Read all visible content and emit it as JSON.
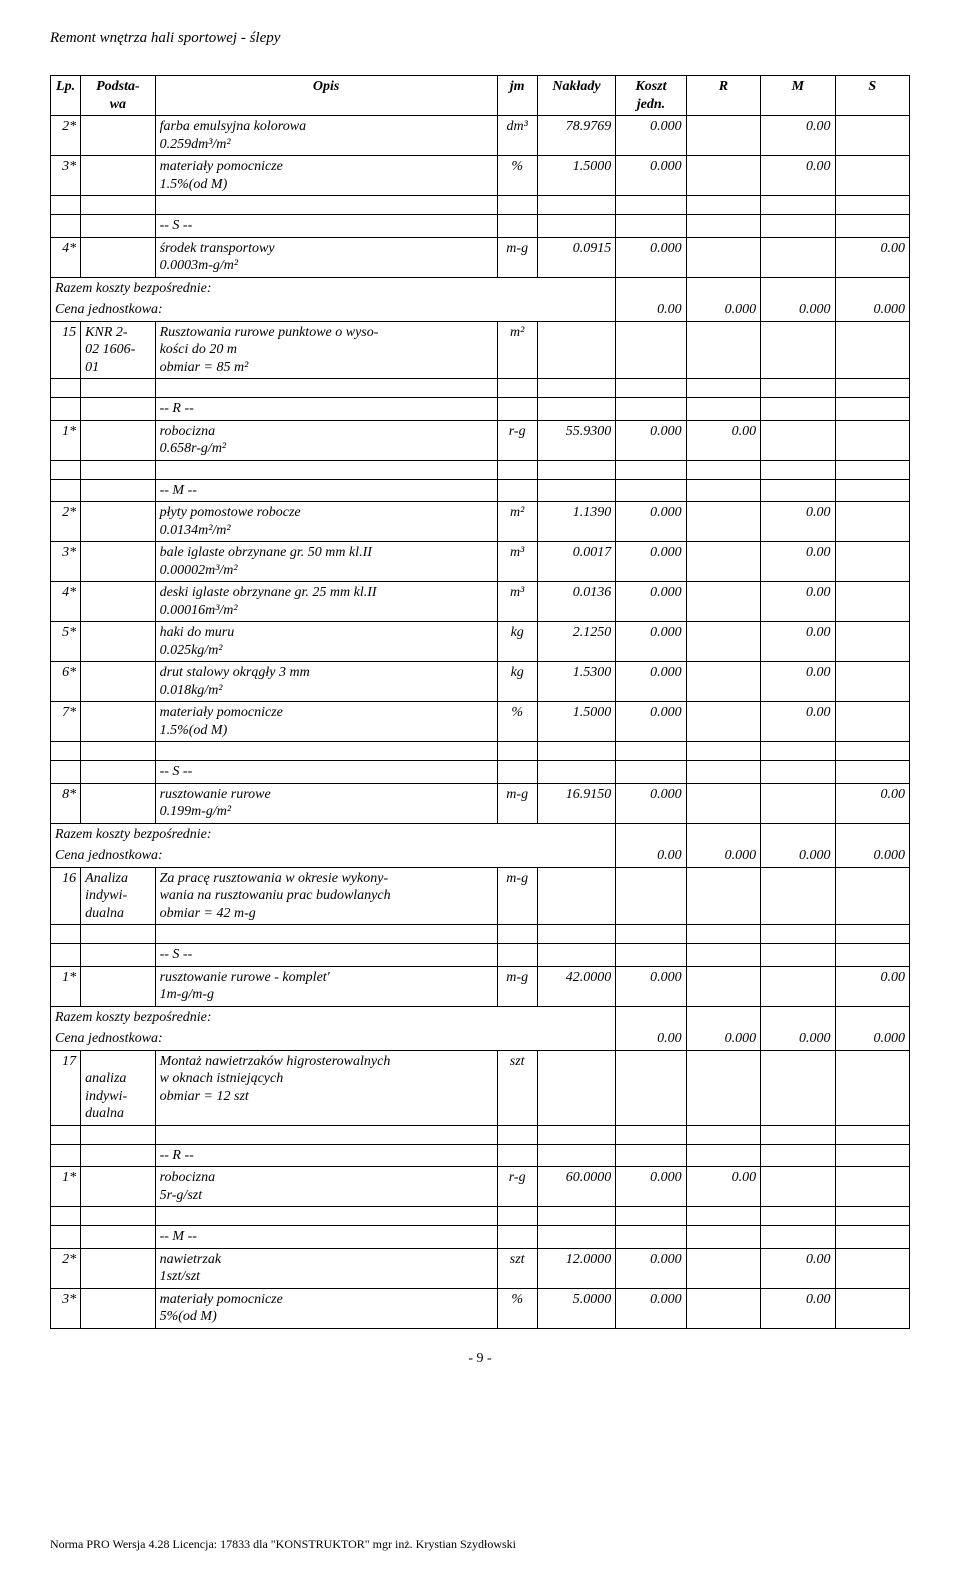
{
  "doc_title": "Remont wnętrza hali sportowej - ślepy",
  "headers": {
    "lp": "Lp.",
    "base": "Podsta-\nwa",
    "desc": "Opis",
    "jm": "jm",
    "nak": "Nakłady",
    "kj": "Koszt\njedn.",
    "r": "R",
    "m": "M",
    "s": "S"
  },
  "summary_label": "Razem koszty bezpośrednie:",
  "unit_price_label": "Cena jednostkowa:",
  "unit_price_val": "0.00",
  "zero3": "0.000",
  "page_num": "- 9 -",
  "footer": "Norma PRO Wersja 4.28 Licencja: 17833 dla \"KONSTRUKTOR\" mgr inż. Krystian Szydłowski",
  "g1": {
    "r1": {
      "lp": "2*",
      "desc": "farba emulsyjna kolorowa\n0.259dm³/m²",
      "jm": "dm³",
      "nak": "78.9769",
      "kj": "0.000",
      "m": "0.00"
    },
    "r2": {
      "lp": "3*",
      "desc": "materiały pomocnicze\n1.5%(od M)",
      "jm": "%",
      "nak": "1.5000",
      "kj": "0.000",
      "m": "0.00"
    },
    "s_hdr": "-- S --",
    "r3": {
      "lp": "4*",
      "desc": "środek transportowy\n0.0003m-g/m²",
      "jm": "m-g",
      "nak": "0.0915",
      "kj": "0.000",
      "s": "0.00"
    }
  },
  "g2": {
    "head": {
      "lp": "15",
      "base": "KNR 2-\n02 1606-\n01",
      "desc": "Rusztowania rurowe punktowe o wyso-\nkości do 20 m\nobmiar  = 85 m²",
      "jm": "m²"
    },
    "r_hdr": "-- R --",
    "r1": {
      "lp": "1*",
      "desc": "robocizna\n0.658r-g/m²",
      "jm": "r-g",
      "nak": "55.9300",
      "kj": "0.000",
      "r": "0.00"
    },
    "m_hdr": "-- M --",
    "r2": {
      "lp": "2*",
      "desc": "płyty pomostowe robocze\n0.0134m²/m²",
      "jm": "m²",
      "nak": "1.1390",
      "kj": "0.000",
      "m": "0.00"
    },
    "r3": {
      "lp": "3*",
      "desc": "bale iglaste obrzynane gr. 50 mm kl.II\n0.00002m³/m²",
      "jm": "m³",
      "nak": "0.0017",
      "kj": "0.000",
      "m": "0.00"
    },
    "r4": {
      "lp": "4*",
      "desc": "deski iglaste obrzynane gr. 25 mm kl.II\n0.00016m³/m²",
      "jm": "m³",
      "nak": "0.0136",
      "kj": "0.000",
      "m": "0.00"
    },
    "r5": {
      "lp": "5*",
      "desc": "haki do muru\n0.025kg/m²",
      "jm": "kg",
      "nak": "2.1250",
      "kj": "0.000",
      "m": "0.00"
    },
    "r6": {
      "lp": "6*",
      "desc": "drut stalowy okrągły 3 mm\n0.018kg/m²",
      "jm": "kg",
      "nak": "1.5300",
      "kj": "0.000",
      "m": "0.00"
    },
    "r7": {
      "lp": "7*",
      "desc": "materiały pomocnicze\n1.5%(od M)",
      "jm": "%",
      "nak": "1.5000",
      "kj": "0.000",
      "m": "0.00"
    },
    "s_hdr": "-- S --",
    "r8": {
      "lp": "8*",
      "desc": "rusztowanie rurowe\n0.199m-g/m²",
      "jm": "m-g",
      "nak": "16.9150",
      "kj": "0.000",
      "s": "0.00"
    }
  },
  "g3": {
    "head": {
      "lp": "16",
      "base": "Analiza\nindywi-\ndualna",
      "desc": "Za pracę rusztowania w okresie wykony-\nwania na rusztowaniu prac budowlanych\nobmiar  = 42 m-g",
      "jm": "m-g"
    },
    "s_hdr": "-- S --",
    "r1": {
      "lp": "1*",
      "desc": "rusztowanie rurowe - komplet'\n1m-g/m-g",
      "jm": "m-g",
      "nak": "42.0000",
      "kj": "0.000",
      "s": "0.00"
    }
  },
  "g4": {
    "head": {
      "lp": "17",
      "base": "\nanaliza\nindywi-\ndualna",
      "desc": "Montaż nawietrzaków higrosterowalnych\nw oknach istniejących\nobmiar  = 12 szt",
      "jm": "szt"
    },
    "r_hdr": "-- R --",
    "r1": {
      "lp": "1*",
      "desc": "robocizna\n5r-g/szt",
      "jm": "r-g",
      "nak": "60.0000",
      "kj": "0.000",
      "r": "0.00"
    },
    "m_hdr": "-- M --",
    "r2": {
      "lp": "2*",
      "desc": "nawietrzak\n1szt/szt",
      "jm": "szt",
      "nak": "12.0000",
      "kj": "0.000",
      "m": "0.00"
    },
    "r3": {
      "lp": "3*",
      "desc": "materiały pomocnicze\n5%(od M)",
      "jm": "%",
      "nak": "5.0000",
      "kj": "0.000",
      "m": "0.00"
    }
  }
}
